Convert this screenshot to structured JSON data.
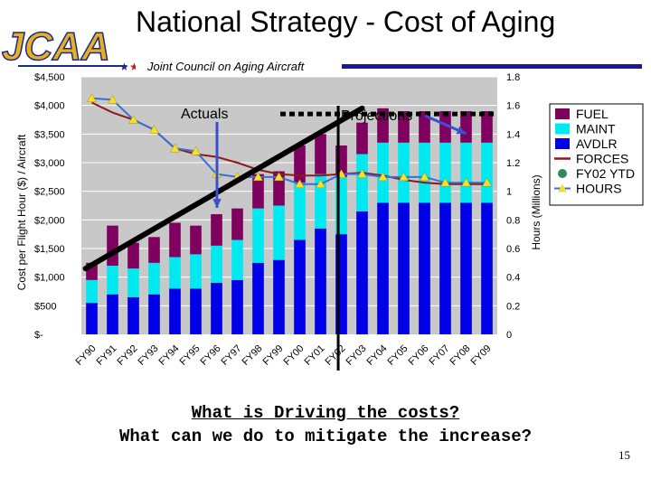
{
  "slide": {
    "title": "National Strategy - Cost of Aging",
    "subtitle": "Joint Council on Aging Aircraft",
    "logo_text": "JCAA",
    "question_line1": "What is Driving the costs?",
    "question_line2": "What can we do to mitigate the increase?",
    "page_number": "15"
  },
  "colors": {
    "fuel": "#800060",
    "maint": "#00e8f0",
    "avdlr": "#0000e8",
    "forces": "#8b1a1a",
    "fy02_ytd": "#2e8b57",
    "hours": "#3a6fd8",
    "hours_marker": "#f5e030",
    "plot_bg": "#c8c8c8",
    "rule": "#1a1a8c",
    "logo_gold": "#e8b020",
    "logo_blue": "#1a2a8c"
  },
  "chart_data": {
    "type": "bar",
    "stacked": true,
    "categories": [
      "FY90",
      "FY91",
      "FY92",
      "FY93",
      "FY94",
      "FY95",
      "FY96",
      "FY97",
      "FY98",
      "FY99",
      "FY00",
      "FY01",
      "FY02",
      "FY03",
      "FY04",
      "FY05",
      "FY06",
      "FY07",
      "FY08",
      "FY09"
    ],
    "series": [
      {
        "name": "AVDLR",
        "axis": "left",
        "values": [
          550,
          700,
          650,
          700,
          800,
          800,
          900,
          950,
          1250,
          1300,
          1650,
          1850,
          1750,
          2150,
          2300,
          2300,
          2300,
          2300,
          2300,
          2300
        ]
      },
      {
        "name": "MAINT",
        "axis": "left",
        "values": [
          400,
          500,
          500,
          550,
          550,
          600,
          650,
          700,
          950,
          950,
          1000,
          950,
          1000,
          1000,
          1050,
          1050,
          1050,
          1050,
          1050,
          1050
        ]
      },
      {
        "name": "FUEL",
        "axis": "left",
        "values": [
          300,
          700,
          450,
          450,
          600,
          500,
          550,
          550,
          600,
          600,
          650,
          700,
          550,
          550,
          600,
          550,
          550,
          550,
          550,
          550
        ]
      },
      {
        "name": "FORCES",
        "type": "line",
        "axis": "right",
        "values": [
          1.62,
          1.55,
          1.5,
          1.43,
          1.3,
          1.26,
          1.24,
          1.2,
          1.15,
          1.12,
          1.11,
          1.11,
          1.12,
          1.13,
          1.11,
          1.08,
          1.06,
          1.05,
          1.05,
          1.05
        ]
      },
      {
        "name": "HOURS",
        "type": "line",
        "axis": "right",
        "values": [
          1.65,
          1.64,
          1.5,
          1.43,
          1.3,
          1.28,
          1.12,
          1.1,
          1.1,
          1.1,
          1.05,
          1.05,
          1.12,
          1.12,
          1.1,
          1.1,
          1.1,
          1.06,
          1.06,
          1.06
        ]
      }
    ],
    "fy02_ytd_label": "FY02 YTD",
    "trend_line": {
      "from": {
        "x": "FY90",
        "y": 1150
      },
      "to": {
        "x": "FY03",
        "y": 3950
      }
    },
    "projection_line_y": 3850,
    "projection_start": "FY02",
    "annotations": [
      {
        "text": "Actuals",
        "points_to": "FY96"
      },
      {
        "text": "Projections",
        "points_to": "FY08"
      }
    ],
    "ylabel_left": "Cost per Flight Hour ($) / Aircraft",
    "ylabel_right": "Hours (Millions)",
    "yticks_left": [
      "$-",
      "$500",
      "$1,000",
      "$1,500",
      "$2,000",
      "$2,500",
      "$3,000",
      "$3,500",
      "$4,000",
      "$4,500"
    ],
    "yticks_right": [
      "0",
      "0.2",
      "0.4",
      "0.6",
      "0.8",
      "1",
      "1.2",
      "1.4",
      "1.6",
      "1.8"
    ],
    "ylim_left": [
      0,
      4500
    ],
    "ylim_right": [
      0,
      1.8
    ],
    "legend": [
      "FUEL",
      "MAINT",
      "AVDLR",
      "FORCES",
      "FY02 YTD",
      "HOURS"
    ],
    "legend_position": "right",
    "grid": true
  }
}
